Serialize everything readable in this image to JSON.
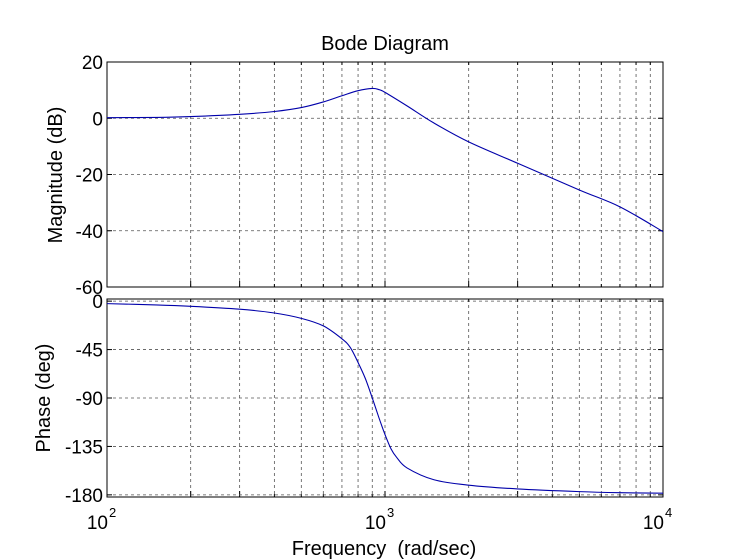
{
  "chart_data": [
    {
      "type": "line",
      "title": "Bode Diagram",
      "ylabel": "Magnitude (dB)",
      "xlabel": "",
      "xscale": "log",
      "xlim": [
        100,
        10000
      ],
      "ylim": [
        -60,
        20
      ],
      "yticks": [
        20,
        0,
        -20,
        -40,
        -60
      ],
      "grid": true,
      "series": [
        {
          "x": [
            100,
            150,
            200,
            300,
            400,
            500,
            600,
            700,
            800,
            900,
            950,
            1000,
            1200,
            1500,
            2000,
            3000,
            5000,
            7000,
            10000
          ],
          "y": [
            0.2,
            0.3,
            0.6,
            1.4,
            2.4,
            3.8,
            5.8,
            8.0,
            9.8,
            10.6,
            10.2,
            9.2,
            4.4,
            -1.7,
            -8.4,
            -16.0,
            -25.5,
            -31.5,
            -40.3
          ]
        }
      ]
    },
    {
      "type": "line",
      "xlabel": "Frequency  (rad/sec)",
      "ylabel": "Phase (deg)",
      "xscale": "log",
      "xlim": [
        100,
        10000
      ],
      "ylim": [
        -182,
        2
      ],
      "yticks": [
        0,
        -45,
        -90,
        -135,
        -180
      ],
      "xticks": [
        {
          "value": 100,
          "base": "10",
          "exp": "2"
        },
        {
          "value": 1000,
          "base": "10",
          "exp": "3"
        },
        {
          "value": 10000,
          "base": "10",
          "exp": "4"
        }
      ],
      "grid": true,
      "series": [
        {
          "x": [
            100,
            150,
            200,
            300,
            400,
            500,
            600,
            700,
            750,
            800,
            850,
            900,
            950,
            1000,
            1050,
            1100,
            1200,
            1500,
            2000,
            3000,
            5000,
            7000,
            10000
          ],
          "y": [
            -2.3,
            -3.5,
            -4.8,
            -7.5,
            -11,
            -16,
            -23,
            -35,
            -43,
            -57,
            -72,
            -90,
            -108,
            -124,
            -137,
            -145,
            -155,
            -166,
            -171,
            -174.5,
            -177,
            -178,
            -178.5
          ]
        }
      ]
    }
  ]
}
